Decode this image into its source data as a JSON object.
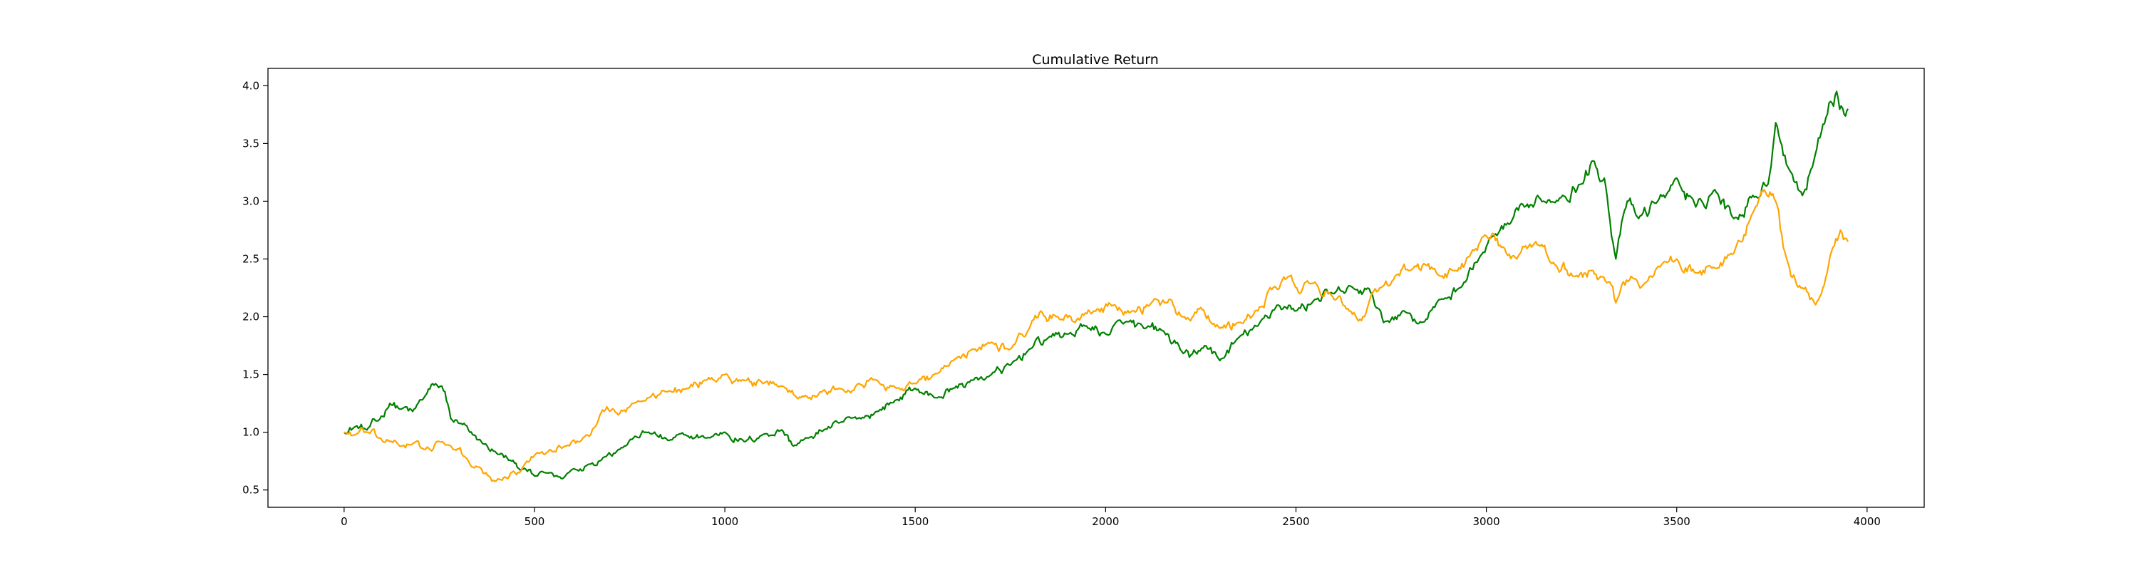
{
  "chart_data": {
    "type": "line",
    "title": "Cumulative Return",
    "xlabel": "",
    "ylabel": "",
    "xlim": [
      -200,
      4150
    ],
    "ylim": [
      0.35,
      4.15
    ],
    "xticks": [
      0,
      500,
      1000,
      1500,
      2000,
      2500,
      3000,
      3500,
      4000
    ],
    "xtick_labels": [
      "0",
      "500",
      "1000",
      "1500",
      "2000",
      "2500",
      "3000",
      "3500",
      "4000"
    ],
    "yticks": [
      0.5,
      1.0,
      1.5,
      2.0,
      2.5,
      3.0,
      3.5,
      4.0
    ],
    "ytick_labels": [
      "0.5",
      "1.0",
      "1.5",
      "2.0",
      "2.5",
      "3.0",
      "3.5",
      "4.0"
    ],
    "grid": false,
    "legend": "none",
    "series": [
      {
        "color": "#008000",
        "x": [
          0,
          30,
          60,
          90,
          120,
          150,
          180,
          210,
          240,
          265,
          280,
          300,
          330,
          360,
          400,
          440,
          470,
          500,
          540,
          570,
          600,
          640,
          680,
          720,
          760,
          800,
          850,
          900,
          950,
          1000,
          1050,
          1100,
          1150,
          1180,
          1220,
          1260,
          1300,
          1350,
          1400,
          1450,
          1500,
          1550,
          1600,
          1650,
          1700,
          1750,
          1800,
          1850,
          1900,
          1950,
          2000,
          2050,
          2100,
          2150,
          2200,
          2220,
          2260,
          2300,
          2350,
          2400,
          2450,
          2500,
          2550,
          2600,
          2650,
          2700,
          2730,
          2780,
          2830,
          2880,
          2930,
          2980,
          3020,
          3060,
          3100,
          3150,
          3200,
          3250,
          3280,
          3310,
          3340,
          3370,
          3400,
          3450,
          3500,
          3550,
          3600,
          3650,
          3700,
          3740,
          3760,
          3800,
          3830,
          3860,
          3880,
          3900,
          3920,
          3940,
          3950
        ],
        "y": [
          1.0,
          1.05,
          1.02,
          1.1,
          1.25,
          1.2,
          1.18,
          1.3,
          1.42,
          1.35,
          1.12,
          1.08,
          1.0,
          0.92,
          0.82,
          0.75,
          0.68,
          0.62,
          0.65,
          0.6,
          0.68,
          0.72,
          0.78,
          0.85,
          0.95,
          1.0,
          0.93,
          0.97,
          0.95,
          1.0,
          0.92,
          0.98,
          1.02,
          0.88,
          0.95,
          1.02,
          1.08,
          1.12,
          1.18,
          1.28,
          1.38,
          1.3,
          1.38,
          1.45,
          1.5,
          1.58,
          1.72,
          1.82,
          1.85,
          1.92,
          1.85,
          1.95,
          1.9,
          1.88,
          1.7,
          1.65,
          1.75,
          1.62,
          1.82,
          1.92,
          2.1,
          2.05,
          2.15,
          2.2,
          2.25,
          2.2,
          1.95,
          2.05,
          1.95,
          2.15,
          2.25,
          2.5,
          2.7,
          2.8,
          2.95,
          3.0,
          3.05,
          3.15,
          3.35,
          3.2,
          2.5,
          3.0,
          2.85,
          3.0,
          3.2,
          2.95,
          3.1,
          2.85,
          3.05,
          3.15,
          3.68,
          3.25,
          3.05,
          3.35,
          3.6,
          3.85,
          3.95,
          3.75,
          3.8
        ]
      },
      {
        "color": "#ffa500",
        "x": [
          0,
          30,
          60,
          90,
          120,
          150,
          180,
          210,
          250,
          290,
          320,
          350,
          380,
          400,
          430,
          460,
          480,
          500,
          540,
          580,
          620,
          660,
          690,
          720,
          760,
          800,
          850,
          900,
          950,
          1000,
          1050,
          1100,
          1150,
          1200,
          1250,
          1300,
          1350,
          1400,
          1450,
          1500,
          1550,
          1600,
          1650,
          1700,
          1750,
          1800,
          1830,
          1870,
          1920,
          1970,
          2020,
          2070,
          2120,
          2170,
          2200,
          2250,
          2300,
          2350,
          2400,
          2440,
          2480,
          2510,
          2550,
          2600,
          2640,
          2680,
          2720,
          2760,
          2800,
          2840,
          2880,
          2920,
          2960,
          3000,
          3040,
          3080,
          3130,
          3180,
          3230,
          3280,
          3320,
          3340,
          3380,
          3420,
          3460,
          3500,
          3550,
          3600,
          3650,
          3700,
          3730,
          3760,
          3780,
          3800,
          3830,
          3850,
          3880,
          3910,
          3930,
          3950
        ],
        "y": [
          1.0,
          0.98,
          1.0,
          0.95,
          0.92,
          0.88,
          0.9,
          0.85,
          0.92,
          0.85,
          0.78,
          0.7,
          0.62,
          0.58,
          0.6,
          0.65,
          0.75,
          0.8,
          0.85,
          0.88,
          0.92,
          1.05,
          1.22,
          1.15,
          1.25,
          1.3,
          1.35,
          1.38,
          1.45,
          1.5,
          1.45,
          1.42,
          1.4,
          1.3,
          1.35,
          1.38,
          1.42,
          1.45,
          1.38,
          1.42,
          1.5,
          1.62,
          1.72,
          1.78,
          1.72,
          1.9,
          2.05,
          2.0,
          1.95,
          2.05,
          2.1,
          2.05,
          2.12,
          2.15,
          2.0,
          2.08,
          1.9,
          1.95,
          2.05,
          2.25,
          2.35,
          2.2,
          2.3,
          2.15,
          2.05,
          2.0,
          2.25,
          2.35,
          2.4,
          2.45,
          2.35,
          2.4,
          2.55,
          2.7,
          2.6,
          2.5,
          2.65,
          2.45,
          2.35,
          2.4,
          2.3,
          2.12,
          2.35,
          2.3,
          2.45,
          2.5,
          2.38,
          2.42,
          2.55,
          2.9,
          3.1,
          3.0,
          2.6,
          2.35,
          2.25,
          2.15,
          2.2,
          2.6,
          2.75,
          2.65
        ]
      }
    ]
  }
}
